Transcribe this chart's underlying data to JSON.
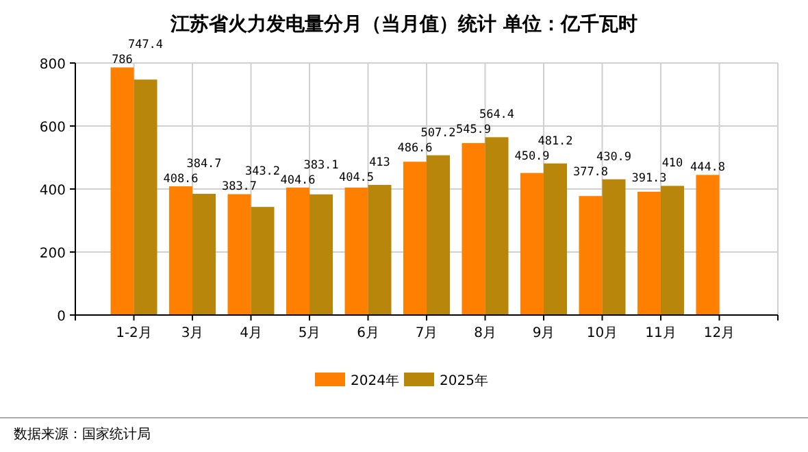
{
  "chart_data": {
    "type": "bar",
    "title": "江苏省火力发电量分月（当月值）统计 单位：亿千瓦时",
    "categories": [
      "1-2月",
      "3月",
      "4月",
      "5月",
      "6月",
      "7月",
      "8月",
      "9月",
      "10月",
      "11月",
      "12月"
    ],
    "series": [
      {
        "name": "2024年",
        "color": "#ff8000",
        "values": [
          786,
          408.6,
          383.7,
          404.6,
          404.5,
          486.6,
          545.9,
          450.9,
          377.8,
          391.3,
          444.8
        ]
      },
      {
        "name": "2025年",
        "color": "#b8860b",
        "values": [
          747.4,
          384.7,
          343.2,
          383.1,
          413,
          507.2,
          564.4,
          481.2,
          430.9,
          410,
          null
        ]
      }
    ],
    "ylim": [
      0,
      800
    ],
    "yticks": [
      0,
      200,
      400,
      600,
      800
    ],
    "grid": true,
    "legend": "bottom",
    "data_labels": true,
    "annotations": [
      "数据来源：国家统计局"
    ]
  }
}
